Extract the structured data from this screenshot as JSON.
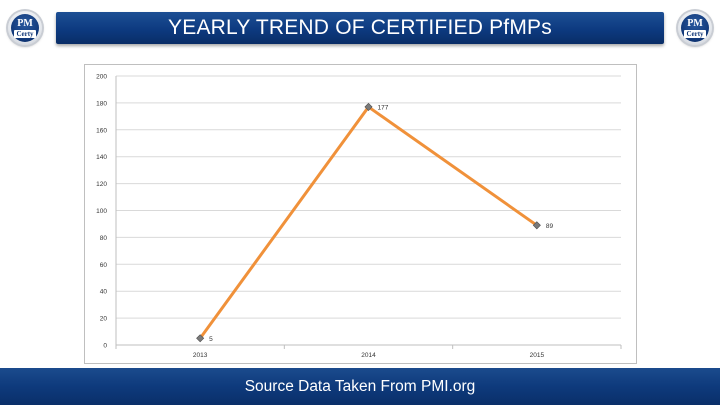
{
  "header": {
    "title": "YEARLY TREND OF CERTIFIED PfMPs",
    "logo_text_top": "PM",
    "logo_text_bottom": "Certy"
  },
  "footer": {
    "text": "Source Data Taken From PMI.org"
  },
  "colors": {
    "title_bar": "#0d3a80",
    "footer_bar": "#0e3a7c",
    "line": "#f0913a",
    "marker": "#7a7a7a",
    "grid": "#d9d9d9"
  },
  "chart_data": {
    "type": "line",
    "title": "",
    "xlabel": "",
    "ylabel": "",
    "categories": [
      "2013",
      "2014",
      "2015"
    ],
    "values": [
      5,
      177,
      89
    ],
    "data_labels": [
      "5",
      "177",
      "89"
    ],
    "ylim": [
      0,
      200
    ],
    "yticks": [
      0,
      20,
      40,
      60,
      80,
      100,
      120,
      140,
      160,
      180,
      200
    ],
    "grid": true,
    "legend": "none"
  }
}
